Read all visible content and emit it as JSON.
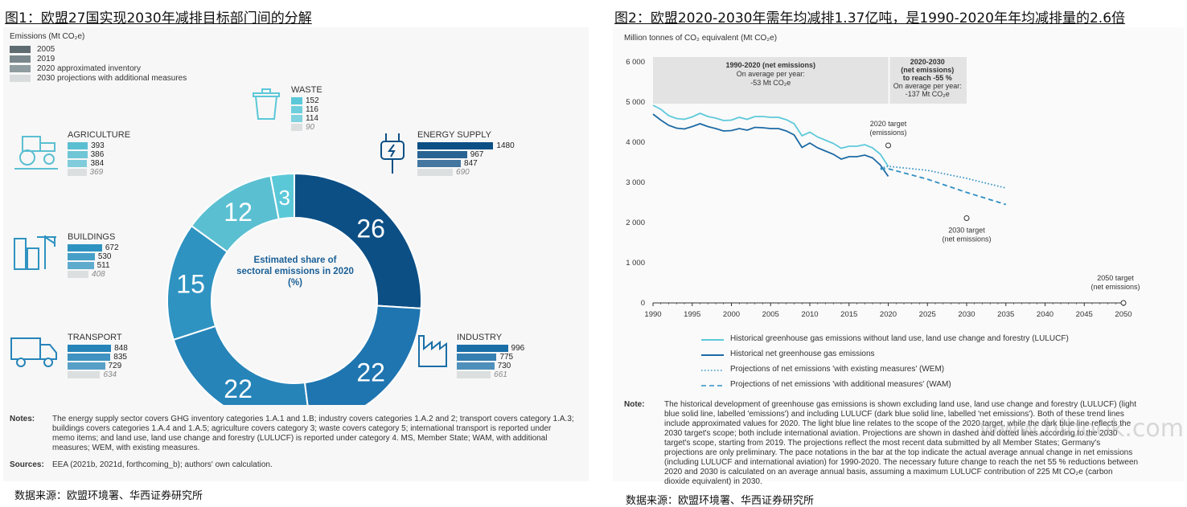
{
  "fig1": {
    "title": "图1：欧盟27国实现2030年减排目标部门间的分解",
    "legend_title": "Emissions (Mt CO₂e)",
    "legend": [
      {
        "label": "2005",
        "color": "#5e6b70"
      },
      {
        "label": "2019",
        "color": "#7a878c"
      },
      {
        "label": "2020 approximated inventory",
        "color": "#8f9ca0"
      },
      {
        "label": "2030 projections with additional measures",
        "color": "#d9dcdd"
      }
    ],
    "center_text": [
      "Estimated share of",
      "sectoral emissions in 2020",
      "(%)"
    ],
    "sectors": [
      {
        "name": "WASTE",
        "values": [
          "152",
          "116",
          "114",
          "90"
        ],
        "raw": [
          152,
          116,
          114,
          90
        ],
        "color": "#5bc8d8"
      },
      {
        "name": "AGRICULTURE",
        "values": [
          "393",
          "386",
          "384",
          "369"
        ],
        "raw": [
          393,
          386,
          384,
          369
        ],
        "color": "#5bbfd2"
      },
      {
        "name": "ENERGY SUPPLY",
        "values": [
          "1480",
          "967",
          "847",
          "690"
        ],
        "raw": [
          1480,
          967,
          847,
          690
        ],
        "color": "#0c4f85"
      },
      {
        "name": "BUILDINGS",
        "values": [
          "672",
          "530",
          "511",
          "408"
        ],
        "raw": [
          672,
          530,
          511,
          408
        ],
        "color": "#2f93c1"
      },
      {
        "name": "TRANSPORT",
        "values": [
          "848",
          "835",
          "729",
          "634"
        ],
        "raw": [
          848,
          835,
          729,
          634
        ],
        "color": "#2684b9"
      },
      {
        "name": "INDUSTRY",
        "values": [
          "996",
          "775",
          "730",
          "661"
        ],
        "raw": [
          996,
          775,
          730,
          661
        ],
        "color": "#1a6ea8"
      }
    ],
    "notes_label": "Notes:",
    "notes_text": "The energy supply sector covers GHG inventory categories 1.A.1 and 1.B; industry covers categories 1.A.2 and 2; transport covers category 1.A.3; buildings covers categories 1.A.4 and 1.A.5; agriculture covers category 3; waste covers category 5; international transport is reported under memo items; and land use, land use change and forestry (LULUCF) is reported under category 4. MS, Member State; WAM, with additional measures; WEM, with existing measures.",
    "sources_label": "Sources:",
    "sources_text": "EEA (2021b, 2021d, forthcoming_b); authors' own calculation.",
    "source_cn": "数据来源：欧盟环境署、华西证券研究所"
  },
  "fig2": {
    "title": "图2：欧盟2020-2030年需年均减排1.37亿吨，是1990-2020年年均减排量的2.6倍",
    "ylabel": "Million tonnes of CO₂ equivalent (Mt CO₂e)",
    "box1": [
      "1990-2020 (net emissions)",
      "On average per year:",
      "-53 Mt CO₂e"
    ],
    "box2": [
      "2020-2030",
      "(net emissions)",
      "to reach -55 %",
      "On average per year:",
      "-137 Mt CO₂e"
    ],
    "annotations": {
      "t2020": [
        "2020 target",
        "(emissions)"
      ],
      "t2030": [
        "2030 target",
        "(net emissions)"
      ],
      "t2050": [
        "2050 target",
        "(net emissions)"
      ]
    },
    "legend": [
      "Historical greenhouse gas emissions without land use, land use change and forestry (LULUCF)",
      "Historical net greenhouse gas emissions",
      "Projections of net emissions 'with existing measures' (WEM)",
      "Projections of net emissions 'with additional measures' (WAM)"
    ],
    "note_label": "Note:",
    "note_text": "The historical development of greenhouse gas emissions is shown excluding land use, land use change and forestry (LULUCF) (light blue solid line, labelled 'emissions') and including LULUCF (dark blue solid line, labelled 'net emissions'). Both of these trend lines include approximated values for 2020. The light blue line relates to the scope of the 2020 target, while the dark blue line reflects the 2030 target's scope; both include international aviation. Projections are shown in dashed and dotted lines according to the 2030 target's scope, starting from 2019. The projections reflect the most recent data submitted by all Member States; Germany's projections are only preliminary. The pace notations in the bar at the top indicate the actual average annual change in net emissions (including LULUCF and international aviation) for 1990-2020. The necessary future change to reach the net 55 % reductions between 2020 and 2030 is calculated on an average annual basis, assuming a maximum LULUCF contribution of 225 Mt CO₂e (carbon dioxide equivalent) in 2030.",
    "source_cn": "数据来源：欧盟环境署、华西证券研究所"
  },
  "watermark": "www.hibook.com",
  "chart_data": [
    {
      "type": "pie",
      "title": "Estimated share of sectoral emissions in 2020 (%)",
      "categories": [
        "Energy supply",
        "Industry",
        "Transport",
        "Buildings",
        "Agriculture",
        "Waste"
      ],
      "values": [
        26,
        22,
        22,
        15,
        12,
        3
      ],
      "colors": [
        "#0c4f85",
        "#1f75b0",
        "#2684b9",
        "#2f93c1",
        "#5bbfd2",
        "#5bc8d8"
      ]
    },
    {
      "type": "line",
      "xlabel": "",
      "ylabel": "Million tonnes of CO₂ equivalent (Mt CO₂e)",
      "xlim": [
        1990,
        2050
      ],
      "ylim": [
        0,
        6000
      ],
      "xticks": [
        1990,
        1995,
        2000,
        2005,
        2010,
        2015,
        2020,
        2025,
        2030,
        2035,
        2040,
        2045,
        2050
      ],
      "yticks": [
        0,
        1000,
        2000,
        3000,
        4000,
        5000,
        6000
      ],
      "series": [
        {
          "name": "Historical greenhouse gas emissions without land use, land use change and forestry (LULUCF)",
          "color": "#5ec9da",
          "style": "solid",
          "x": [
            1990,
            1991,
            1992,
            1993,
            1994,
            1995,
            1996,
            1997,
            1998,
            1999,
            2000,
            2001,
            2002,
            2003,
            2004,
            2005,
            2006,
            2007,
            2008,
            2009,
            2010,
            2011,
            2012,
            2013,
            2014,
            2015,
            2016,
            2017,
            2018,
            2019,
            2020
          ],
          "y": [
            4920,
            4820,
            4660,
            4590,
            4570,
            4630,
            4720,
            4640,
            4600,
            4540,
            4550,
            4620,
            4570,
            4640,
            4640,
            4620,
            4620,
            4560,
            4460,
            4160,
            4250,
            4130,
            4050,
            3970,
            3850,
            3900,
            3900,
            3940,
            3860,
            3700,
            3400
          ]
        },
        {
          "name": "Historical net greenhouse gas emissions",
          "color": "#1d6aa5",
          "style": "solid",
          "x": [
            1990,
            1991,
            1992,
            1993,
            1994,
            1995,
            1996,
            1997,
            1998,
            1999,
            2000,
            2001,
            2002,
            2003,
            2004,
            2005,
            2006,
            2007,
            2008,
            2009,
            2010,
            2011,
            2012,
            2013,
            2014,
            2015,
            2016,
            2017,
            2018,
            2019,
            2020
          ],
          "y": [
            4700,
            4550,
            4420,
            4350,
            4330,
            4390,
            4460,
            4390,
            4340,
            4280,
            4290,
            4340,
            4300,
            4370,
            4360,
            4340,
            4340,
            4280,
            4180,
            3870,
            3980,
            3860,
            3780,
            3700,
            3580,
            3640,
            3640,
            3680,
            3610,
            3430,
            3150
          ]
        },
        {
          "name": "Projections of net emissions 'with existing measures' (WEM)",
          "color": "#2f8fc4",
          "style": "dotted",
          "x": [
            2019,
            2020,
            2025,
            2030,
            2035
          ],
          "y": [
            3350,
            3400,
            3300,
            3100,
            2860
          ]
        },
        {
          "name": "Projections of net emissions 'with additional measures' (WAM)",
          "color": "#2f8fc4",
          "style": "dashed",
          "x": [
            2019,
            2020,
            2025,
            2030,
            2035
          ],
          "y": [
            3330,
            3340,
            3080,
            2750,
            2450
          ]
        }
      ],
      "markers": [
        {
          "label": "2020 target (emissions)",
          "x": 2020,
          "y": 3920
        },
        {
          "label": "2030 target (net emissions)",
          "x": 2030,
          "y": 2110
        },
        {
          "label": "2050 target (net emissions)",
          "x": 2050,
          "y": 0
        }
      ]
    }
  ]
}
